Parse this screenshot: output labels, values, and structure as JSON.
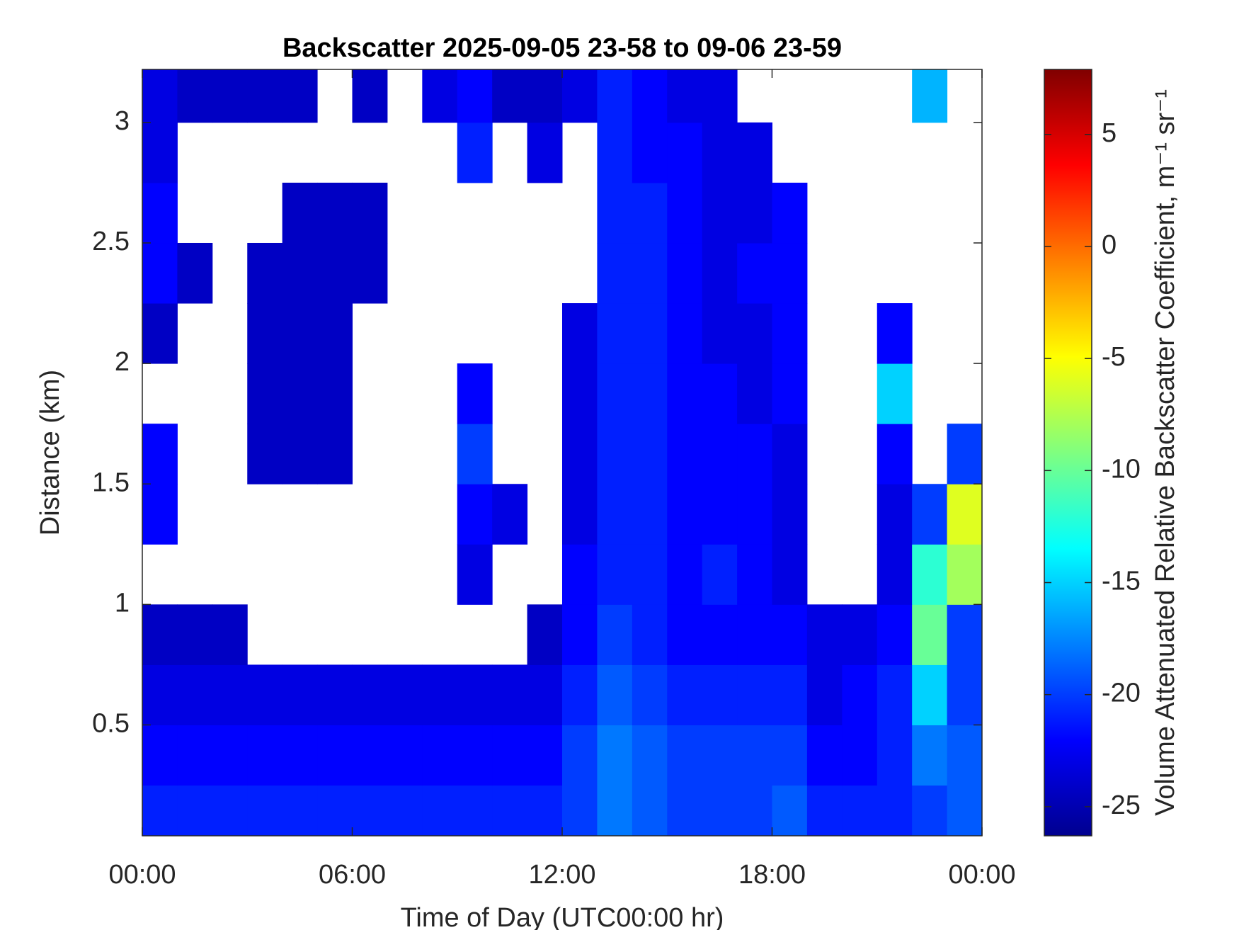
{
  "chart_data": {
    "type": "heatmap",
    "title": "Backscatter 2025-09-05 23-58 to 09-06 23-59",
    "x_label": "Time of Day (UTC00:00 hr)",
    "y_label": "Distance (km)",
    "colorbar_label": "Volume Attenuated Relative Backscatter Coefficient, m⁻¹ sr⁻¹",
    "colormap": "jet",
    "xlim": [
      0,
      24
    ],
    "xticks": [
      {
        "value": 0,
        "label": "00:00"
      },
      {
        "value": 6,
        "label": "06:00"
      },
      {
        "value": 12,
        "label": "12:00"
      },
      {
        "value": 18,
        "label": "18:00"
      },
      {
        "value": 24,
        "label": "00:00"
      }
    ],
    "ylim": [
      0.04,
      3.22
    ],
    "yticks": [
      0.5,
      1,
      1.5,
      2,
      2.5,
      3
    ],
    "clim": [
      -26.3,
      7.9
    ],
    "cticks": [
      -25,
      -20,
      -15,
      -10,
      -5,
      0,
      5
    ],
    "xbins": [
      0,
      1,
      2,
      3,
      4,
      5,
      6,
      7,
      8,
      9,
      10,
      11,
      12,
      13,
      14,
      15,
      16,
      17,
      18,
      19,
      20,
      21,
      22,
      23,
      24
    ],
    "ybins": [
      0.04,
      0.25,
      0.5,
      0.75,
      1,
      1.25,
      1.5,
      1.75,
      2,
      2.25,
      2.5,
      2.75,
      3,
      3.22
    ],
    "z": [
      [
        -21,
        -21,
        -21,
        -21,
        -21,
        -21,
        -21,
        -21,
        -21,
        -21,
        -21,
        -21,
        -20,
        -18,
        -19,
        -20,
        -20,
        -20,
        -19,
        -21,
        -21,
        -21,
        -20,
        -19
      ],
      [
        -22,
        -22,
        -22,
        -22,
        -22,
        -22,
        -22,
        -22,
        -22,
        -22,
        -22,
        -22,
        -20,
        -18,
        -19,
        -20,
        -20,
        -20,
        -20,
        -22,
        -22,
        -21,
        -18,
        -19
      ],
      [
        -23,
        -23,
        -23,
        -23,
        -23,
        -23,
        -23,
        -23,
        -23,
        -23,
        -23,
        -23,
        -21,
        -19,
        -20,
        -21,
        -21,
        -21,
        -21,
        -23,
        -22,
        -21,
        -15,
        -20
      ],
      [
        -24,
        -24,
        -24,
        null,
        null,
        null,
        null,
        null,
        null,
        null,
        null,
        -24,
        -22,
        -20,
        -21,
        -22,
        -22,
        -22,
        -22,
        -23,
        -23,
        -22,
        -10,
        -20
      ],
      [
        null,
        null,
        null,
        null,
        null,
        null,
        null,
        null,
        null,
        -23,
        null,
        null,
        -22,
        -21,
        -21,
        -22,
        -21,
        -22,
        -23,
        null,
        null,
        -23,
        -12,
        -8
      ],
      [
        -22,
        null,
        null,
        null,
        null,
        null,
        null,
        null,
        null,
        -22,
        -23,
        null,
        -23,
        -21,
        -21,
        -22,
        -22,
        -22,
        -23,
        null,
        null,
        -23,
        -20,
        -6
      ],
      [
        -22,
        null,
        null,
        -24,
        -24,
        -24,
        null,
        null,
        null,
        -20,
        null,
        null,
        -23,
        -21,
        -21,
        -22,
        -22,
        -22,
        -23,
        null,
        null,
        -22,
        null,
        -20
      ],
      [
        null,
        null,
        null,
        -24,
        -24,
        -24,
        null,
        null,
        null,
        -22,
        null,
        null,
        -23,
        -21,
        -21,
        -22,
        -22,
        -23,
        -22,
        null,
        null,
        -15,
        null,
        null
      ],
      [
        -24,
        null,
        null,
        -24,
        -24,
        -24,
        null,
        null,
        null,
        null,
        null,
        null,
        -23,
        -21,
        -21,
        -22,
        -23,
        -23,
        -22,
        null,
        null,
        -22,
        null,
        null
      ],
      [
        -22,
        -24,
        null,
        -24,
        -24,
        -24,
        -24,
        null,
        null,
        null,
        null,
        null,
        null,
        -21,
        -21,
        -22,
        -23,
        -22,
        -22,
        null,
        null,
        null,
        null,
        null
      ],
      [
        -22,
        null,
        null,
        null,
        -24,
        -24,
        -24,
        null,
        null,
        null,
        null,
        null,
        null,
        -21,
        -21,
        -22,
        -23,
        -23,
        -22,
        null,
        null,
        null,
        null,
        null
      ],
      [
        -23,
        null,
        null,
        null,
        null,
        null,
        null,
        null,
        null,
        -21,
        null,
        -23,
        null,
        -21,
        -22,
        -22,
        -23,
        -23,
        null,
        null,
        null,
        null,
        null,
        null
      ],
      [
        -23,
        -24,
        -24,
        -24,
        -24,
        null,
        -24,
        null,
        -23,
        -22,
        -24,
        -24,
        -23,
        -21,
        -22,
        -23,
        -23,
        null,
        null,
        null,
        null,
        null,
        -16,
        null
      ]
    ]
  }
}
